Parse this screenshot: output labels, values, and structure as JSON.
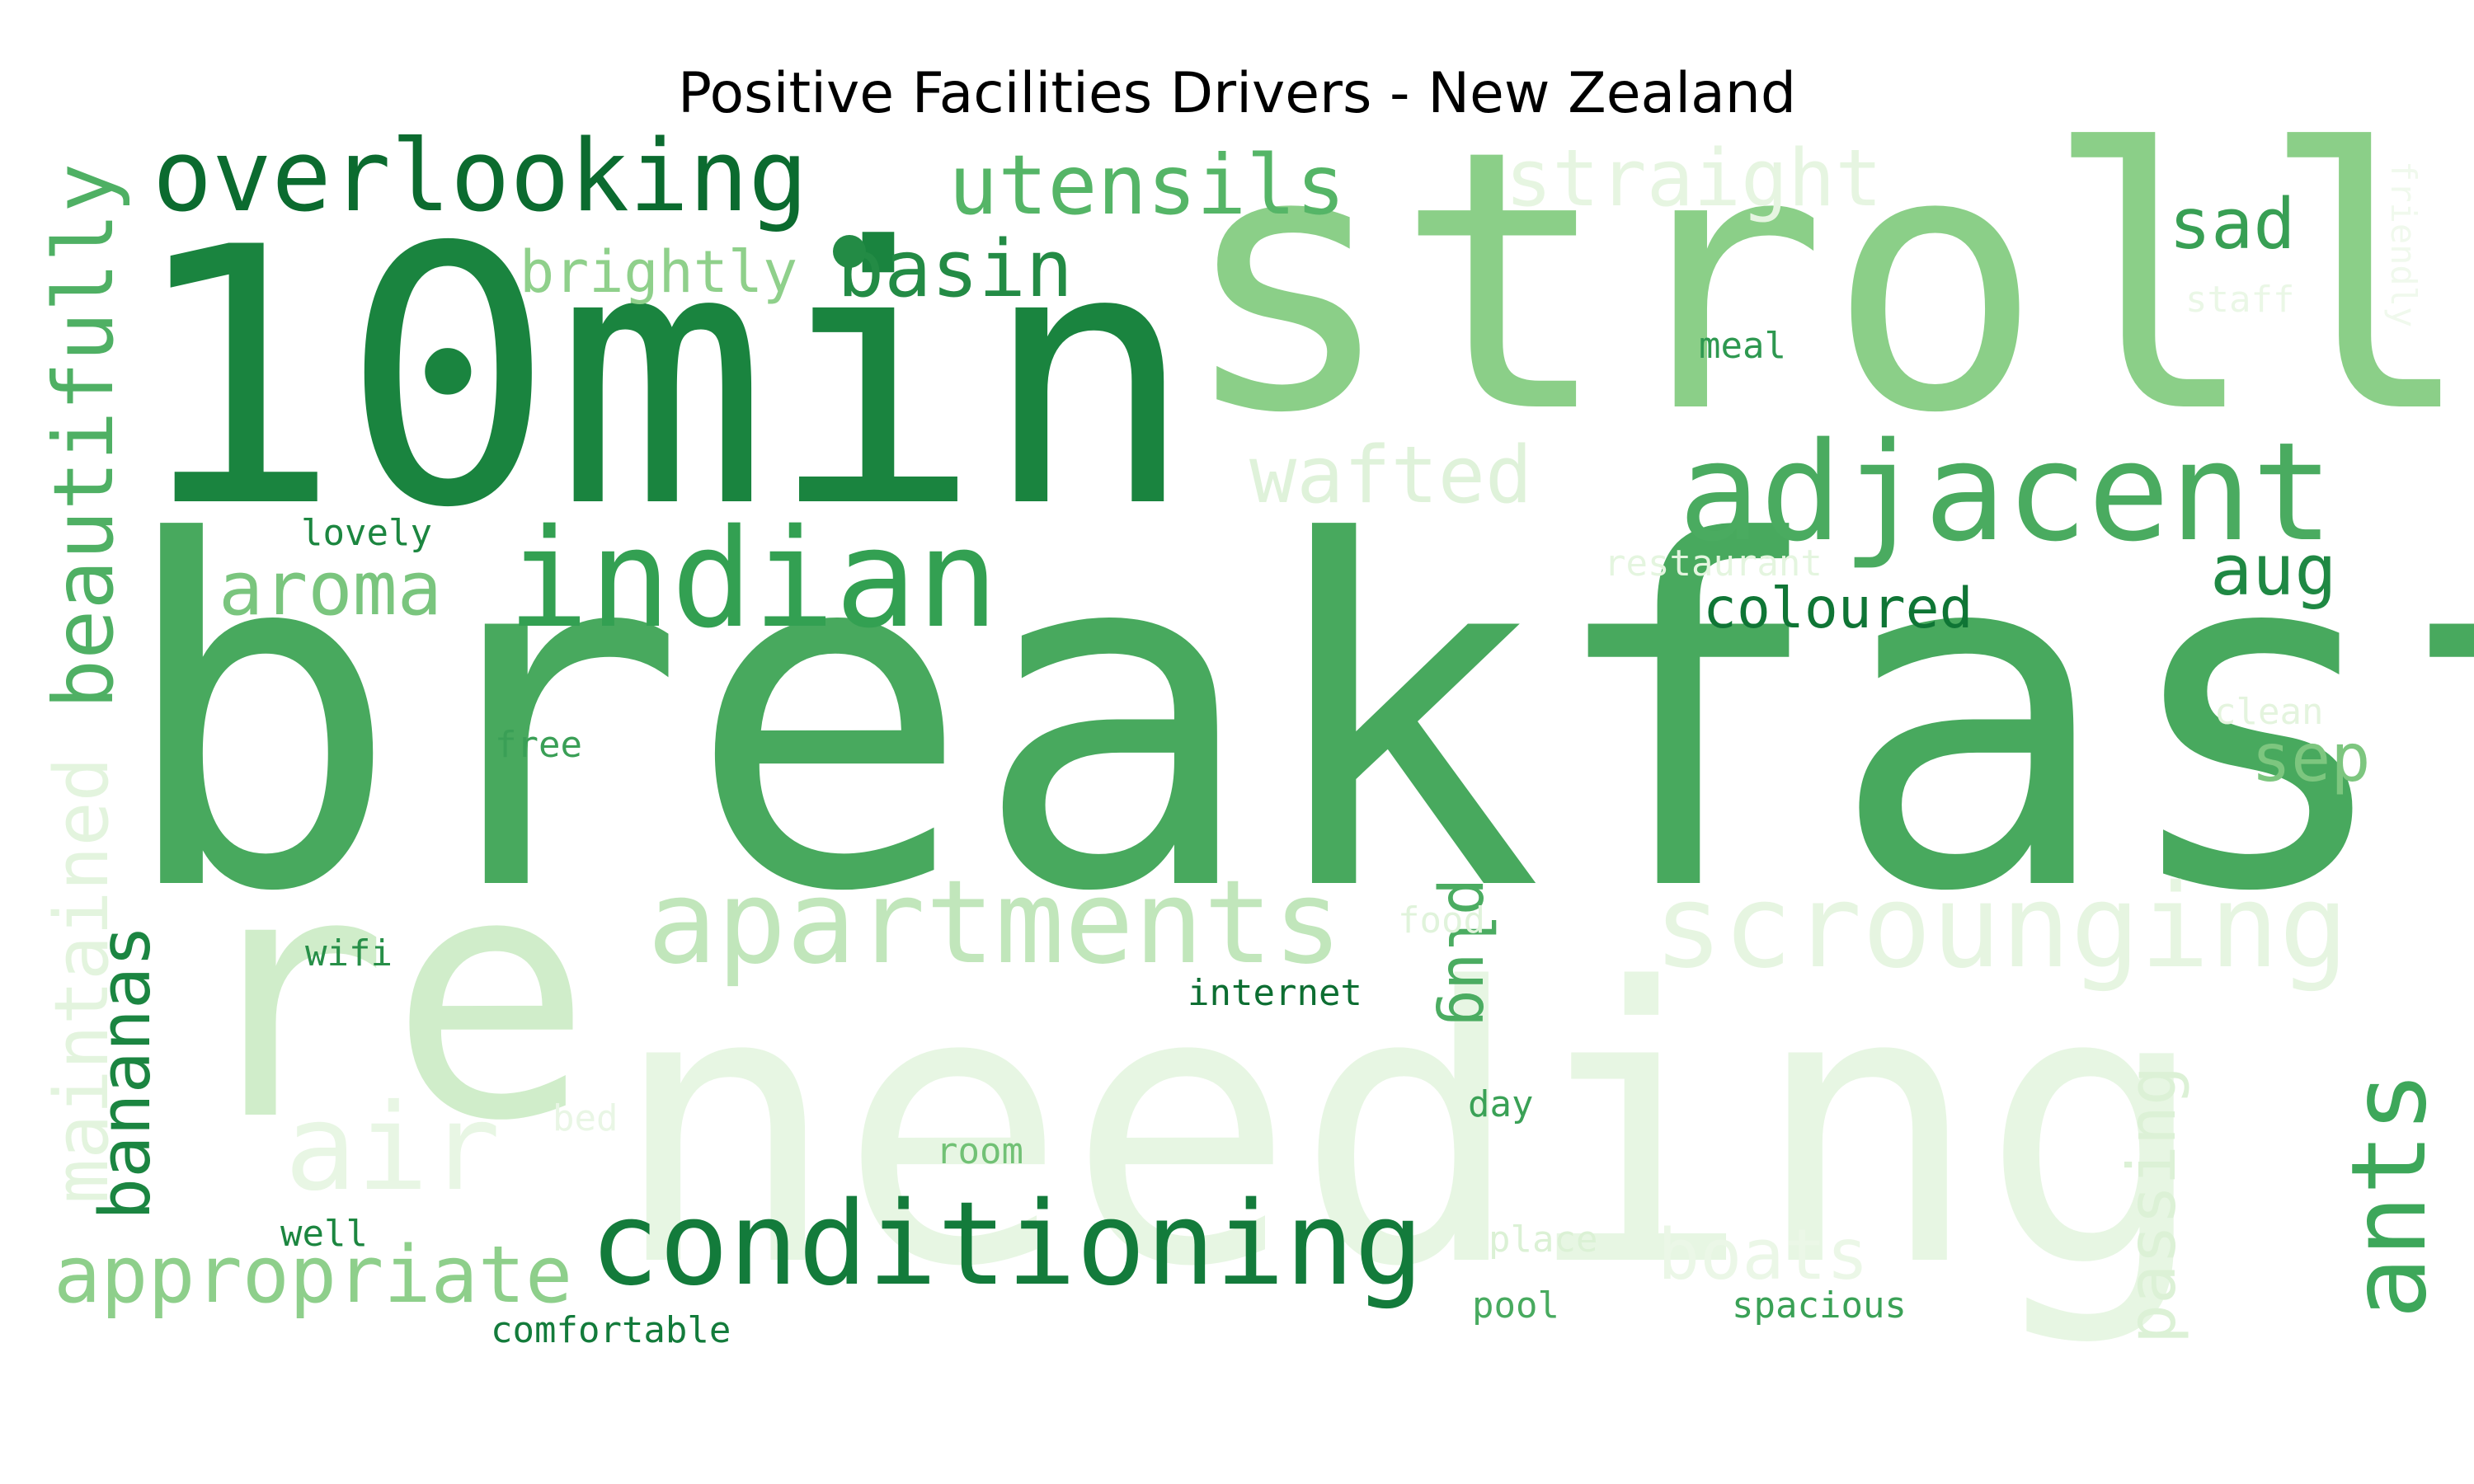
{
  "title": "Positive Facilities Drivers - New Zealand",
  "words": [
    {
      "text": "needing",
      "color": "#e7f6e3"
    },
    {
      "text": "re",
      "color": "#d0edca"
    },
    {
      "text": "breakfast",
      "color": "#48a95e"
    },
    {
      "text": "stroll",
      "color": "#8bcf88"
    },
    {
      "text": "10min",
      "color": "#1a843f"
    },
    {
      "text": "adjacent",
      "color": "#4aab60"
    },
    {
      "text": "conditioning",
      "color": "#137b3b"
    },
    {
      "text": "apartments",
      "color": "#c1e6bb"
    },
    {
      "text": "scrounging",
      "color": "#e6f5e1"
    },
    {
      "text": "indian",
      "color": "#33a052"
    },
    {
      "text": "overlooking",
      "color": "#0b6b2f"
    },
    {
      "text": "utensils",
      "color": "#55b567"
    },
    {
      "text": "straight",
      "color": "#e6f5e1"
    },
    {
      "text": "beautifully",
      "color": "#4fb064"
    },
    {
      "text": "maintained",
      "color": "#e3f4de"
    },
    {
      "text": "air",
      "color": "#e8f6e4"
    },
    {
      "text": "appropriate",
      "color": "#8ecf8b"
    },
    {
      "text": "bananas",
      "color": "#1b8541"
    },
    {
      "text": "ants",
      "color": "#3da75a"
    },
    {
      "text": "wafted",
      "color": "#dff2da"
    },
    {
      "text": "aroma",
      "color": "#7ac57e"
    },
    {
      "text": "basin",
      "color": "#238b45"
    },
    {
      "text": "passing",
      "color": "#dcf1d6"
    },
    {
      "text": "boats",
      "color": "#ebf7e7"
    },
    {
      "text": "brightly",
      "color": "#8fd08b"
    },
    {
      "text": "sad",
      "color": "#389f54"
    },
    {
      "text": "plug",
      "color": "#4bac61"
    },
    {
      "text": "coloured",
      "color": "#0f7535"
    },
    {
      "text": "aug",
      "color": "#1f8843"
    },
    {
      "text": "sep",
      "color": "#7dc67f"
    },
    {
      "text": "lovely",
      "color": "#1c8640"
    },
    {
      "text": "free",
      "color": "#3a9f56"
    },
    {
      "text": "meal",
      "color": "#2e9850"
    },
    {
      "text": "staff",
      "color": "#eaf7e6"
    },
    {
      "text": "friendly",
      "color": "#f0f9ed"
    },
    {
      "text": "restaurant",
      "color": "#e4f5df"
    },
    {
      "text": "clean",
      "color": "#e4f4de"
    },
    {
      "text": "food",
      "color": "#e0f3db"
    },
    {
      "text": "wifi",
      "color": "#278f48"
    },
    {
      "text": "internet",
      "color": "#0d6e32"
    },
    {
      "text": "day",
      "color": "#3aa156"
    },
    {
      "text": "bed",
      "color": "#e9f6e5"
    },
    {
      "text": "room",
      "color": "#71c175"
    },
    {
      "text": "well",
      "color": "#1c8640"
    },
    {
      "text": "place",
      "color": "#dbf1d5"
    },
    {
      "text": "pool",
      "color": "#48aa5f"
    },
    {
      "text": "spacious",
      "color": "#3aa156"
    },
    {
      "text": "comfortable",
      "color": "#137b3b"
    }
  ]
}
